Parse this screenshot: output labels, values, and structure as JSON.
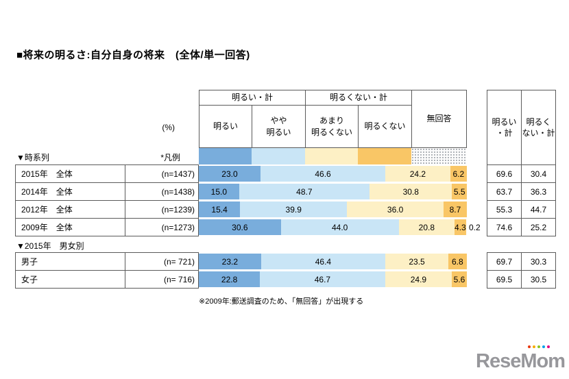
{
  "title": "■将来の明るさ:自分自身の将来　(全体/単一回答)",
  "unit_label": "(%)",
  "footnote": "※2009年:郵送調査のため、「無回答」が出現する",
  "logo": {
    "text": "ReseMom",
    "dot_colors": [
      "#e8380d",
      "#f6ab00",
      "#8fc31f",
      "#00a0e9",
      "#e4007f"
    ]
  },
  "chart_data": {
    "type": "bar",
    "stacked": true,
    "orientation": "horizontal",
    "value_unit": "%",
    "axis_range": [
      0,
      100
    ],
    "legend_note": "*凡例",
    "group_headers": [
      "明るい・計",
      "明るくない・計"
    ],
    "series_labels": [
      "明るい",
      "やや明るい",
      "あまり明るくない",
      "明るくない",
      "無回答"
    ],
    "series_labels_display": [
      "明るい",
      "やや\n明るい",
      "あまり\n明るくない",
      "明るくない",
      "無回答"
    ],
    "colors": [
      "#79ADDC",
      "#C9E5F6",
      "#FDF0C5",
      "#F9C666",
      "#EFEFEF"
    ],
    "no_answer_pattern": "dotted",
    "summary_columns": [
      "明るい・計",
      "明るくない・計"
    ],
    "summary_columns_display": [
      "明るい\n・計",
      "明るく\nない・計"
    ],
    "sections": [
      {
        "label": "▼時系列",
        "rows": [
          {
            "label": "2015年　全体",
            "n": "(n=1437)",
            "values": [
              23.0,
              46.6,
              24.2,
              6.2,
              null
            ],
            "totals": [
              69.6,
              30.4
            ]
          },
          {
            "label": "2014年　全体",
            "n": "(n=1438)",
            "values": [
              15.0,
              48.7,
              30.8,
              5.5,
              null
            ],
            "totals": [
              63.7,
              36.3
            ]
          },
          {
            "label": "2012年　全体",
            "n": "(n=1239)",
            "values": [
              15.4,
              39.9,
              36.0,
              8.7,
              null
            ],
            "totals": [
              55.3,
              44.7
            ]
          },
          {
            "label": "2009年　全体",
            "n": "(n=1273)",
            "values": [
              30.6,
              44.0,
              20.8,
              4.3,
              0.2
            ],
            "totals": [
              74.6,
              25.2
            ]
          }
        ]
      },
      {
        "label": "▼2015年　男女別",
        "rows": [
          {
            "label": "男子",
            "n": "(n= 721)",
            "values": [
              23.2,
              46.4,
              23.5,
              6.8,
              null
            ],
            "totals": [
              69.7,
              30.3
            ]
          },
          {
            "label": "女子",
            "n": "(n= 716)",
            "values": [
              22.8,
              46.7,
              24.9,
              5.6,
              null
            ],
            "totals": [
              69.5,
              30.5
            ]
          }
        ]
      }
    ]
  }
}
